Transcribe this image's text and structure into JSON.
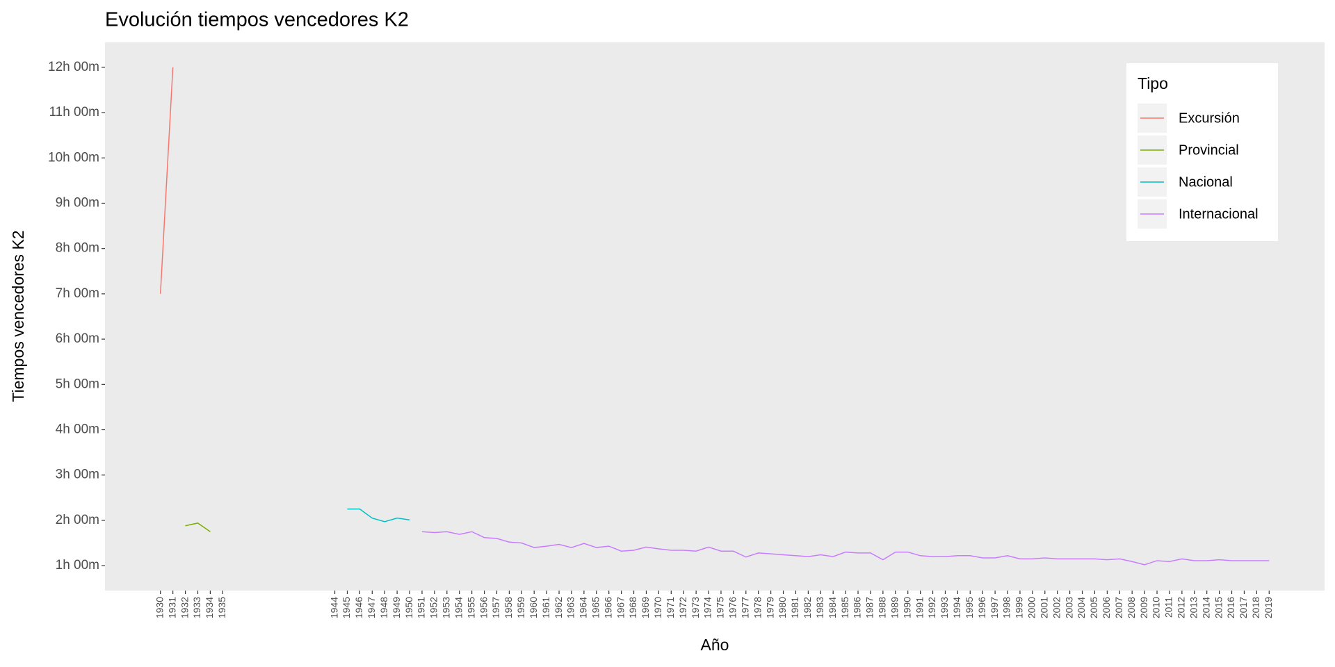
{
  "chart_data": {
    "type": "line",
    "title": "Evolución tiempos vencedores K2",
    "x_label": "Año",
    "y_label": "Tiempos vencedores K2",
    "legend_title": "Tipo",
    "legend": "top-right",
    "grid": false,
    "xlim": [
      1925.55,
      2023.45
    ],
    "ylim": [
      0.45,
      12.55
    ],
    "xticks": [
      1930,
      1931,
      1932,
      1933,
      1934,
      1935,
      1944,
      1945,
      1946,
      1947,
      1948,
      1949,
      1950,
      1951,
      1952,
      1953,
      1954,
      1955,
      1956,
      1957,
      1958,
      1959,
      1960,
      1961,
      1962,
      1963,
      1964,
      1965,
      1966,
      1967,
      1968,
      1969,
      1970,
      1971,
      1972,
      1973,
      1974,
      1975,
      1976,
      1977,
      1978,
      1979,
      1980,
      1981,
      1982,
      1983,
      1984,
      1985,
      1986,
      1987,
      1988,
      1989,
      1990,
      1991,
      1992,
      1993,
      1994,
      1995,
      1996,
      1997,
      1998,
      1999,
      2000,
      2001,
      2002,
      2003,
      2004,
      2005,
      2006,
      2007,
      2008,
      2009,
      2010,
      2011,
      2012,
      2013,
      2014,
      2015,
      2016,
      2017,
      2018,
      2019
    ],
    "yticks": [
      {
        "value": 1,
        "label": "1h 00m"
      },
      {
        "value": 2,
        "label": "2h 00m"
      },
      {
        "value": 3,
        "label": "3h 00m"
      },
      {
        "value": 4,
        "label": "4h 00m"
      },
      {
        "value": 5,
        "label": "5h 00m"
      },
      {
        "value": 6,
        "label": "6h 00m"
      },
      {
        "value": 7,
        "label": "7h 00m"
      },
      {
        "value": 8,
        "label": "8h 00m"
      },
      {
        "value": 9,
        "label": "9h 00m"
      },
      {
        "value": 10,
        "label": "10h 00m"
      },
      {
        "value": 11,
        "label": "11h 00m"
      },
      {
        "value": 12,
        "label": "12h 00m"
      }
    ],
    "series": [
      {
        "name": "Excursión",
        "color": "#F8766D",
        "x": [
          1930,
          1931
        ],
        "values": [
          7.0,
          12.0
        ]
      },
      {
        "name": "Provincial",
        "color": "#7CAE00",
        "x": [
          1932,
          1933,
          1934
        ],
        "values": [
          1.88,
          1.94,
          1.75
        ]
      },
      {
        "name": "Nacional",
        "color": "#00BFC4",
        "x": [
          1945,
          1946,
          1947,
          1948,
          1949,
          1950
        ],
        "values": [
          2.25,
          2.25,
          2.05,
          1.97,
          2.05,
          2.01
        ]
      },
      {
        "name": "Internacional",
        "color": "#C77CFF",
        "x": [
          1951,
          1952,
          1953,
          1954,
          1955,
          1956,
          1957,
          1958,
          1959,
          1960,
          1961,
          1962,
          1963,
          1964,
          1965,
          1966,
          1967,
          1968,
          1969,
          1970,
          1971,
          1972,
          1973,
          1974,
          1975,
          1976,
          1977,
          1978,
          1979,
          1980,
          1981,
          1982,
          1983,
          1984,
          1985,
          1986,
          1987,
          1988,
          1989,
          1990,
          1991,
          1992,
          1993,
          1994,
          1995,
          1996,
          1997,
          1998,
          1999,
          2000,
          2001,
          2002,
          2003,
          2004,
          2005,
          2006,
          2007,
          2008,
          2009,
          2010,
          2011,
          2012,
          2013,
          2014,
          2015,
          2016,
          2017,
          2018,
          2019
        ],
        "values": [
          1.75,
          1.73,
          1.75,
          1.69,
          1.75,
          1.62,
          1.6,
          1.52,
          1.5,
          1.4,
          1.43,
          1.47,
          1.4,
          1.49,
          1.4,
          1.43,
          1.32,
          1.34,
          1.41,
          1.37,
          1.34,
          1.34,
          1.32,
          1.41,
          1.32,
          1.32,
          1.19,
          1.28,
          1.26,
          1.24,
          1.22,
          1.2,
          1.24,
          1.2,
          1.3,
          1.28,
          1.28,
          1.13,
          1.3,
          1.3,
          1.22,
          1.2,
          1.2,
          1.22,
          1.22,
          1.17,
          1.17,
          1.22,
          1.15,
          1.15,
          1.17,
          1.15,
          1.15,
          1.15,
          1.15,
          1.13,
          1.15,
          1.09,
          1.02,
          1.11,
          1.09,
          1.15,
          1.11,
          1.11,
          1.13,
          1.11,
          1.11,
          1.11,
          1.11
        ]
      }
    ]
  }
}
